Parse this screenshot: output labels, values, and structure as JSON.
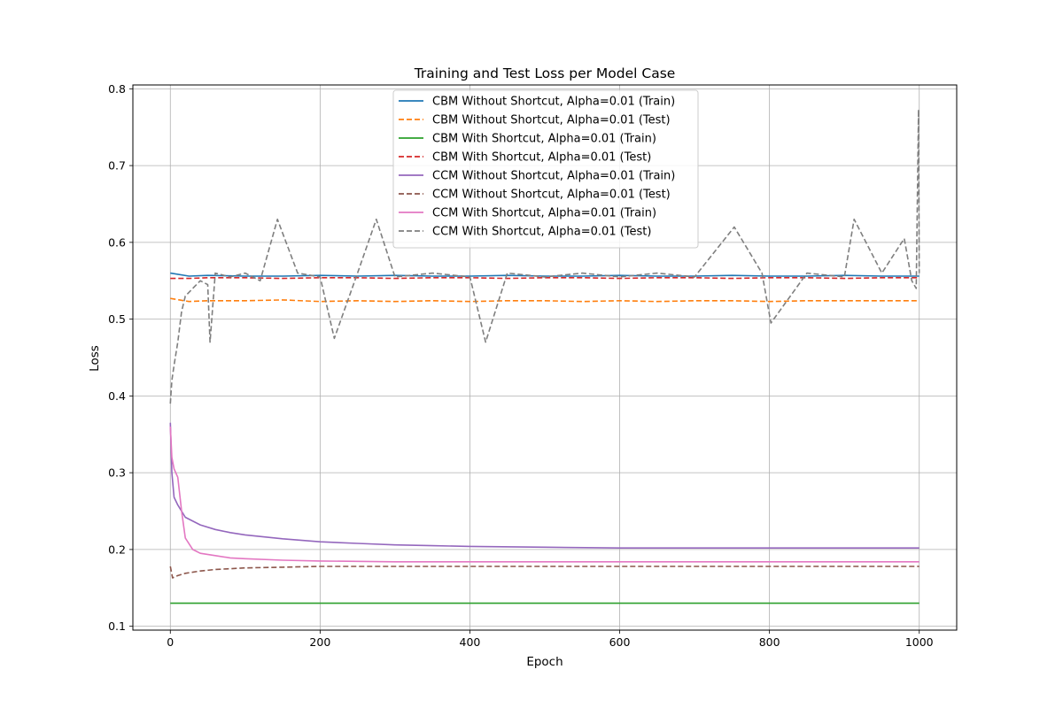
{
  "chart_data": {
    "type": "line",
    "title": "Training and Test Loss per Model Case",
    "xlabel": "Epoch",
    "ylabel": "Loss",
    "xlim": [
      -50,
      1050
    ],
    "ylim": [
      0.095,
      0.805
    ],
    "xticks": [
      0,
      200,
      400,
      600,
      800,
      1000
    ],
    "yticks": [
      0.1,
      0.2,
      0.3,
      0.4,
      0.5,
      0.6,
      0.7,
      0.8
    ],
    "xtick_labels": [
      "0",
      "200",
      "400",
      "600",
      "800",
      "1000"
    ],
    "ytick_labels": [
      "0.1",
      "0.2",
      "0.3",
      "0.4",
      "0.5",
      "0.6",
      "0.7",
      "0.8"
    ],
    "grid": true,
    "legend_position": "upper center",
    "series": [
      {
        "name": "CBM Without Shortcut, Alpha=0.01 (Train)",
        "color": "#1f77b4",
        "dash": "solid",
        "x": [
          0,
          25,
          50,
          100,
          150,
          200,
          250,
          300,
          350,
          400,
          450,
          500,
          550,
          600,
          650,
          700,
          750,
          800,
          850,
          900,
          950,
          1000
        ],
        "y": [
          0.56,
          0.556,
          0.557,
          0.556,
          0.556,
          0.557,
          0.556,
          0.557,
          0.556,
          0.556,
          0.557,
          0.556,
          0.556,
          0.557,
          0.556,
          0.556,
          0.557,
          0.556,
          0.556,
          0.557,
          0.556,
          0.556
        ]
      },
      {
        "name": "CBM Without Shortcut, Alpha=0.01 (Test)",
        "color": "#ff7f0e",
        "dash": "dashed",
        "x": [
          0,
          25,
          50,
          100,
          150,
          200,
          250,
          300,
          350,
          400,
          450,
          500,
          550,
          600,
          650,
          700,
          750,
          800,
          850,
          900,
          950,
          1000
        ],
        "y": [
          0.527,
          0.523,
          0.524,
          0.524,
          0.525,
          0.523,
          0.524,
          0.523,
          0.524,
          0.523,
          0.524,
          0.524,
          0.523,
          0.524,
          0.523,
          0.524,
          0.524,
          0.523,
          0.524,
          0.524,
          0.524,
          0.524
        ]
      },
      {
        "name": "CBM With Shortcut, Alpha=0.01 (Train)",
        "color": "#2ca02c",
        "dash": "solid",
        "x": [
          0,
          25,
          50,
          100,
          150,
          200,
          250,
          300,
          350,
          400,
          450,
          500,
          550,
          600,
          650,
          700,
          750,
          800,
          850,
          900,
          950,
          1000
        ],
        "y": [
          0.13,
          0.13,
          0.13,
          0.13,
          0.13,
          0.13,
          0.13,
          0.13,
          0.13,
          0.13,
          0.13,
          0.13,
          0.13,
          0.13,
          0.13,
          0.13,
          0.13,
          0.13,
          0.13,
          0.13,
          0.13,
          0.13
        ]
      },
      {
        "name": "CBM With Shortcut, Alpha=0.01 (Test)",
        "color": "#d62728",
        "dash": "dashed",
        "x": [
          0,
          25,
          50,
          100,
          150,
          200,
          250,
          300,
          350,
          400,
          450,
          500,
          550,
          600,
          650,
          700,
          750,
          800,
          850,
          900,
          950,
          1000
        ],
        "y": [
          0.553,
          0.553,
          0.554,
          0.554,
          0.553,
          0.554,
          0.554,
          0.553,
          0.554,
          0.554,
          0.553,
          0.554,
          0.554,
          0.553,
          0.554,
          0.554,
          0.553,
          0.554,
          0.554,
          0.553,
          0.554,
          0.554
        ]
      },
      {
        "name": "CCM Without Shortcut, Alpha=0.01 (Train)",
        "color": "#9467bd",
        "dash": "solid",
        "x": [
          0,
          2,
          5,
          10,
          20,
          40,
          60,
          80,
          100,
          150,
          200,
          250,
          300,
          350,
          400,
          500,
          600,
          700,
          800,
          900,
          1000
        ],
        "y": [
          0.365,
          0.3,
          0.268,
          0.258,
          0.242,
          0.232,
          0.226,
          0.222,
          0.219,
          0.214,
          0.21,
          0.208,
          0.206,
          0.205,
          0.204,
          0.203,
          0.202,
          0.202,
          0.202,
          0.202,
          0.202
        ]
      },
      {
        "name": "CCM Without Shortcut, Alpha=0.01 (Test)",
        "color": "#8c564b",
        "dash": "dashed",
        "x": [
          0,
          3,
          10,
          20,
          40,
          60,
          80,
          100,
          150,
          200,
          300,
          400,
          500,
          600,
          700,
          800,
          900,
          1000
        ],
        "y": [
          0.178,
          0.163,
          0.166,
          0.169,
          0.172,
          0.174,
          0.175,
          0.176,
          0.177,
          0.178,
          0.178,
          0.178,
          0.178,
          0.178,
          0.178,
          0.178,
          0.178,
          0.178
        ]
      },
      {
        "name": "CCM With Shortcut, Alpha=0.01 (Train)",
        "color": "#e377c2",
        "dash": "solid",
        "x": [
          0,
          2,
          5,
          10,
          15,
          20,
          30,
          40,
          60,
          80,
          100,
          150,
          200,
          300,
          400,
          500,
          600,
          700,
          800,
          900,
          1000
        ],
        "y": [
          0.36,
          0.32,
          0.305,
          0.294,
          0.25,
          0.215,
          0.2,
          0.195,
          0.192,
          0.189,
          0.188,
          0.186,
          0.185,
          0.184,
          0.184,
          0.184,
          0.184,
          0.184,
          0.184,
          0.184,
          0.184
        ]
      },
      {
        "name": "CCM With Shortcut, Alpha=0.01 (Test)",
        "color": "#7f7f7f",
        "dash": "dashed",
        "x": [
          0,
          2,
          5,
          10,
          15,
          20,
          30,
          40,
          50,
          53,
          60,
          80,
          100,
          120,
          143,
          170,
          200,
          219,
          250,
          275,
          300,
          350,
          400,
          421,
          450,
          500,
          550,
          600,
          650,
          700,
          753,
          790,
          802,
          850,
          900,
          913,
          950,
          980,
          990,
          996,
          999,
          1000
        ],
        "y": [
          0.39,
          0.42,
          0.44,
          0.47,
          0.51,
          0.53,
          0.54,
          0.55,
          0.545,
          0.47,
          0.56,
          0.555,
          0.56,
          0.55,
          0.63,
          0.56,
          0.555,
          0.475,
          0.56,
          0.63,
          0.555,
          0.56,
          0.555,
          0.47,
          0.56,
          0.555,
          0.56,
          0.555,
          0.56,
          0.555,
          0.62,
          0.56,
          0.495,
          0.56,
          0.555,
          0.63,
          0.56,
          0.605,
          0.55,
          0.54,
          0.773,
          0.56
        ]
      }
    ]
  }
}
